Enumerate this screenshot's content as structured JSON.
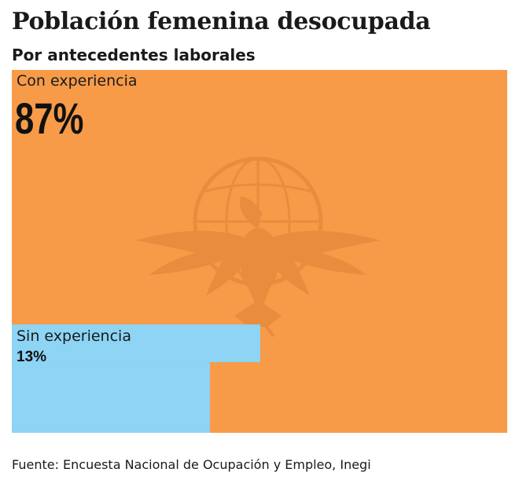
{
  "title": "Población femenina desocupada",
  "subtitle": "Por antecedentes laborales",
  "source": "Fuente: Encuesta Nacional de Ocupación y Empleo, Inegi",
  "chart_data": {
    "type": "treemap",
    "title": "Población femenina desocupada",
    "subtitle": "Por antecedentes laborales",
    "unit": "%",
    "categories": [
      "Con experiencia",
      "Sin experiencia"
    ],
    "values": [
      87,
      13
    ],
    "value_labels": [
      "87%",
      "13%"
    ],
    "colors": [
      "#f79b49",
      "#8dd4f5"
    ],
    "watermark": "eagle-emblem"
  }
}
